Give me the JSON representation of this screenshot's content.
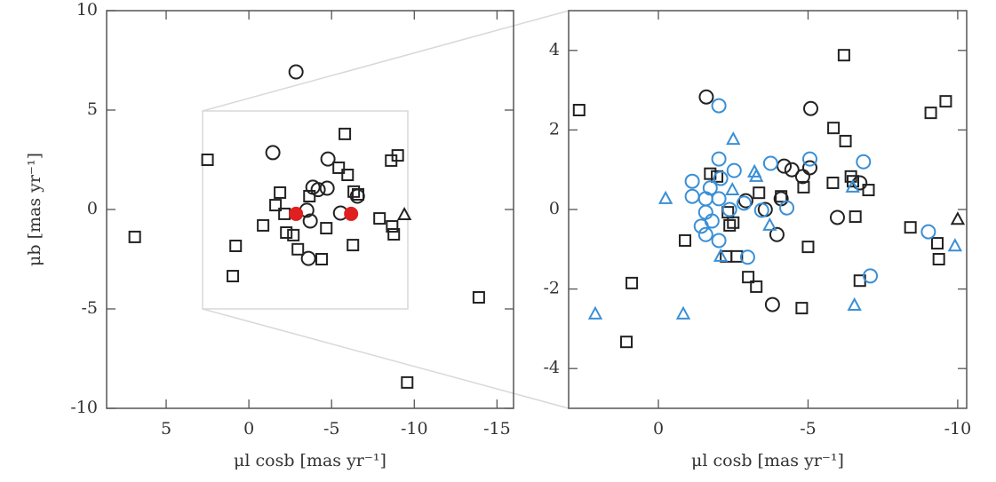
{
  "chart_data": [
    {
      "type": "scatter",
      "xlabel": "μl cosb [mas yr⁻¹]",
      "ylabel": "μb [mas yr⁻¹]",
      "xlim": [
        8.6,
        -16
      ],
      "ylim": [
        -10,
        10
      ],
      "xticks": [
        5,
        0,
        -5,
        -10,
        -15
      ],
      "yticks": [
        -10,
        -5,
        0,
        5,
        10
      ],
      "series": [
        {
          "marker": "square",
          "color": "#222222",
          "x": [
            6.9,
            2.5,
            0.8,
            0.97,
            -0.86,
            -1.88,
            -2.15,
            -2.26,
            -2.69,
            -2.96,
            -4.4,
            -5.8,
            -5.43,
            -5.97,
            -6.34,
            -6.6,
            -4.68,
            -7.9,
            -8.6,
            -9.0,
            -8.66,
            -8.76,
            -6.29,
            -9.57,
            -13.9,
            -1.61,
            -3.66
          ],
          "y": [
            -1.38,
            2.5,
            -1.83,
            -3.35,
            -0.8,
            0.85,
            -0.22,
            -1.16,
            -1.29,
            -2.0,
            -2.5,
            3.8,
            2.1,
            1.74,
            0.9,
            0.76,
            -0.94,
            -0.45,
            2.46,
            2.72,
            -0.85,
            -1.25,
            -1.79,
            -8.7,
            -4.42,
            0.22,
            0.67
          ]
        },
        {
          "marker": "circle",
          "color": "#222222",
          "x": [
            -2.85,
            -1.45,
            -4.78,
            -3.87,
            -4.19,
            -4.73,
            -3.5,
            -3.71,
            -3.6,
            -5.54,
            -6.56
          ],
          "y": [
            6.92,
            2.86,
            2.54,
            1.12,
            1.0,
            1.07,
            -0.04,
            -0.58,
            -2.46,
            -0.18,
            0.67
          ]
        },
        {
          "marker": "triangle",
          "color": "#222222",
          "x": [
            -9.4
          ],
          "y": [
            -0.27
          ]
        },
        {
          "marker": "filled-circle",
          "color": "#e02020",
          "x": [
            -2.85,
            -6.18
          ],
          "y": [
            -0.22,
            -0.22
          ]
        }
      ]
    },
    {
      "type": "scatter",
      "xlabel": "μl cosb [mas yr⁻¹]",
      "xlim": [
        3,
        -10.3
      ],
      "ylim": [
        -5,
        5
      ],
      "xticks": [
        0,
        -5,
        -10
      ],
      "yticks": [
        -4,
        -2,
        0,
        2,
        4
      ],
      "series": [
        {
          "marker": "square",
          "color": "#222222",
          "x": [
            2.65,
            -6.2,
            -5.85,
            -6.25,
            -9.1,
            -9.6,
            -1.73,
            -1.96,
            -6.43,
            -6.5,
            -5.83,
            -4.85,
            -7.02,
            -3.36,
            -4.1,
            -2.32,
            -2.5,
            -2.38,
            -6.58,
            -8.42,
            -9.32,
            -9.37,
            -0.89,
            0.89,
            1.07,
            -2.26,
            -2.62,
            -3.0,
            -3.27,
            -5.0,
            -4.79,
            -6.73
          ],
          "y": [
            2.5,
            3.88,
            2.05,
            1.72,
            2.43,
            2.72,
            0.9,
            0.83,
            0.83,
            0.71,
            0.67,
            0.56,
            0.49,
            0.42,
            0.33,
            -0.07,
            -0.33,
            -0.4,
            -0.18,
            -0.45,
            -0.85,
            -1.25,
            -0.78,
            -1.85,
            -3.33,
            -1.18,
            -1.18,
            -1.7,
            -1.94,
            -0.94,
            -2.48,
            -1.79
          ]
        },
        {
          "marker": "circle",
          "color": "#222222",
          "x": [
            -1.6,
            -5.09,
            -2.92,
            -4.2,
            -4.46,
            -5.06,
            -4.82,
            -6.73,
            -4.1,
            -3.57,
            -3.96,
            -5.98,
            -3.81
          ],
          "y": [
            2.83,
            2.54,
            0.22,
            1.09,
            1.0,
            1.05,
            0.83,
            0.67,
            0.27,
            0.0,
            -0.63,
            -0.2,
            -2.39
          ]
        },
        {
          "marker": "circle",
          "color": "#3a8fd6",
          "x": [
            -2.02,
            -1.13,
            -1.13,
            -2.02,
            -2.53,
            -3.75,
            -5.06,
            -6.85,
            -2.08,
            -1.73,
            -1.58,
            -2.02,
            -2.38,
            -1.58,
            -1.79,
            -1.43,
            -2.02,
            -2.86,
            -3.45,
            -4.29,
            -2.98,
            -9.02,
            -7.08,
            -1.58
          ],
          "y": [
            2.61,
            0.71,
            0.33,
            1.27,
            0.98,
            1.16,
            1.27,
            1.2,
            0.78,
            0.54,
            0.27,
            0.27,
            0.0,
            -0.07,
            -0.29,
            -0.42,
            -0.78,
            0.16,
            -0.02,
            0.04,
            -1.2,
            -0.56,
            -1.67,
            -0.63
          ]
        },
        {
          "marker": "triangle",
          "color": "#3a8fd6",
          "x": [
            -0.24,
            -2.5,
            -3.21,
            -3.27,
            -2.47,
            -3.72,
            -6.49,
            -6.55,
            -9.91,
            2.11,
            -0.83,
            -2.08
          ],
          "y": [
            0.27,
            1.76,
            0.94,
            0.83,
            0.49,
            -0.4,
            0.56,
            -2.41,
            -0.92,
            -2.63,
            -2.63,
            -1.18
          ]
        },
        {
          "marker": "triangle",
          "color": "#222222",
          "x": [
            -10.0
          ],
          "y": [
            -0.25
          ]
        }
      ]
    }
  ]
}
